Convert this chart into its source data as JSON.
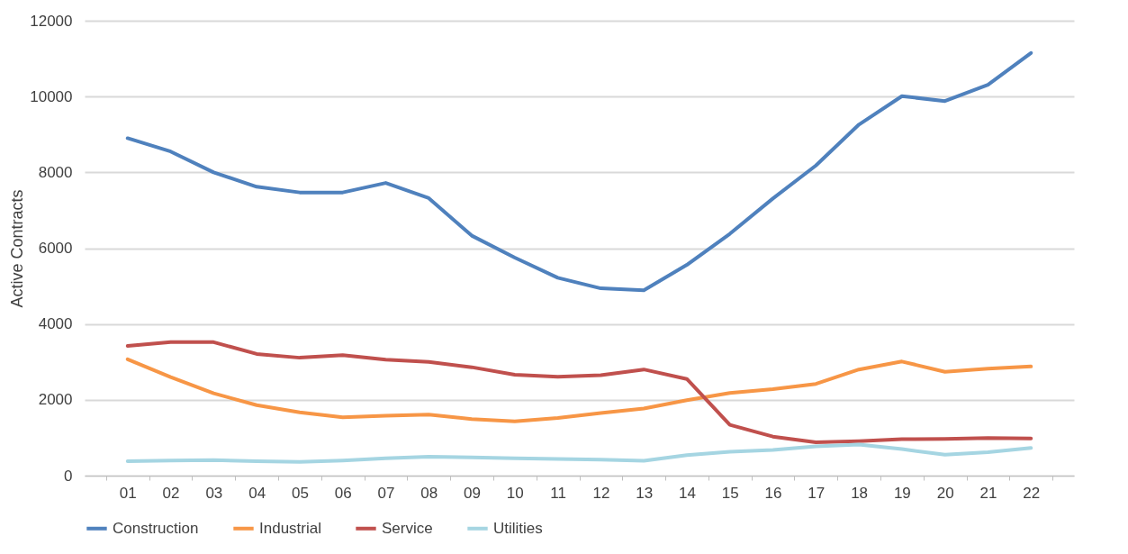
{
  "chart_data": {
    "type": "line",
    "ylabel": "Active Contracts",
    "categories": [
      "01",
      "02",
      "03",
      "04",
      "05",
      "06",
      "07",
      "08",
      "09",
      "10",
      "11",
      "12",
      "13",
      "14",
      "15",
      "16",
      "17",
      "18",
      "19",
      "20",
      "21",
      "22"
    ],
    "series": [
      {
        "name": "Construction",
        "color": "#4f81bd",
        "values": [
          8900,
          8550,
          8000,
          7620,
          7470,
          7470,
          7720,
          7320,
          6330,
          5750,
          5220,
          4940,
          4890,
          5560,
          6380,
          7310,
          8180,
          9260,
          10010,
          9880,
          10310,
          11150
        ]
      },
      {
        "name": "Industrial",
        "color": "#f79646",
        "values": [
          3070,
          2600,
          2170,
          1860,
          1670,
          1540,
          1580,
          1610,
          1490,
          1430,
          1520,
          1650,
          1770,
          1990,
          2180,
          2280,
          2420,
          2800,
          3010,
          2740,
          2820,
          2880
        ]
      },
      {
        "name": "Service",
        "color": "#c0504d",
        "values": [
          3420,
          3520,
          3520,
          3210,
          3110,
          3180,
          3060,
          3000,
          2860,
          2660,
          2610,
          2650,
          2800,
          2550,
          1340,
          1030,
          880,
          910,
          960,
          970,
          990,
          980
        ]
      },
      {
        "name": "Utilities",
        "color": "#a5d5e2",
        "values": [
          380,
          400,
          410,
          380,
          360,
          400,
          460,
          500,
          480,
          460,
          440,
          420,
          390,
          540,
          630,
          680,
          770,
          820,
          700,
          550,
          620,
          730
        ]
      }
    ],
    "ylim": [
      0,
      12000
    ],
    "yticks": [
      0,
      2000,
      4000,
      6000,
      8000,
      10000,
      12000
    ],
    "grid": "y",
    "legend": "bottom",
    "marker": "none",
    "line_style": "solid"
  }
}
